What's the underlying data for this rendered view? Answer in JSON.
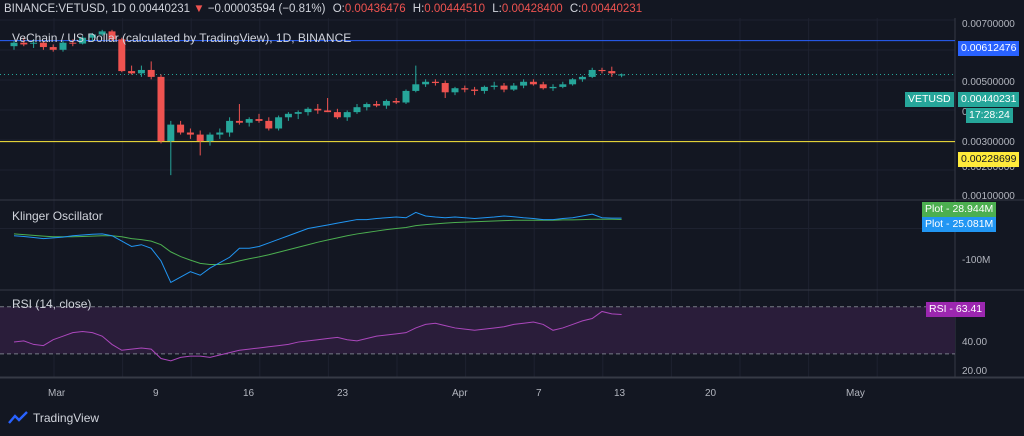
{
  "header": {
    "symbol": "BINANCE:VETUSD, 1D",
    "last": "0.00440231",
    "arrow": "▼",
    "change": "−0.00003594 (−0.81%)",
    "o_label": "O:",
    "o_value": "0.00436476",
    "h_label": "H:",
    "h_value": "0.00444510",
    "l_label": "L:",
    "l_value": "0.00428400",
    "c_label": "C:",
    "c_value": "0.00440231"
  },
  "main_pane": {
    "title": "VeChain / US Dollar (calculated by TradingView), 1D, BINANCE",
    "price_ticks": [
      "0.00700000",
      "0.00500000",
      "0.00300000",
      "0.00200000",
      "0.00100000"
    ],
    "partial_tick": "0",
    "blue_line_label": "0.00612476",
    "yellow_line_label": "0.00228699",
    "vetusd_tag": "VETUSD",
    "last_price_tag": "0.00440231",
    "countdown": "17:28:24"
  },
  "klinger_pane": {
    "title": "Klinger Oscillator",
    "plot1_label": "Plot",
    "plot1_value": "28.944M",
    "plot2_label": "Plot",
    "plot2_value": "25.081M",
    "tick_minus100": "-100M"
  },
  "rsi_pane": {
    "title": "RSI (14, close)",
    "rsi_label": "RSI",
    "rsi_value": "63.41",
    "ticks": [
      "40.00",
      "20.00"
    ]
  },
  "time_axis": {
    "labels": [
      "Mar",
      "9",
      "16",
      "23",
      "Apr",
      "7",
      "13",
      "20",
      "May"
    ]
  },
  "brand": {
    "name": "TradingView"
  },
  "colors": {
    "background": "#131722",
    "up": "#26a69a",
    "down": "#ef5350",
    "kvo_line": "#2196f3",
    "kvo_signal": "#4caf50",
    "rsi_line": "#ab47bc",
    "rsi_band": "#2a1d3a",
    "blue_line": "#2962ff",
    "yellow_line": "#ffeb3b"
  },
  "chart_data": {
    "type": "candlestick",
    "price_scale": "log",
    "price_ticks": [
      0.007,
      0.005,
      0.003,
      0.002,
      0.001
    ],
    "horizontal_lines": [
      0.00612476,
      0.00228699
    ],
    "x": [
      "Feb 26",
      "Feb 27",
      "Feb 28",
      "Feb 29",
      "Mar 1",
      "Mar 2",
      "Mar 3",
      "Mar 4",
      "Mar 5",
      "Mar 6",
      "Mar 7",
      "Mar 8",
      "Mar 9",
      "Mar 10",
      "Mar 11",
      "Mar 12",
      "Mar 13",
      "Mar 14",
      "Mar 15",
      "Mar 16",
      "Mar 17",
      "Mar 18",
      "Mar 19",
      "Mar 20",
      "Mar 21",
      "Mar 22",
      "Mar 23",
      "Mar 24",
      "Mar 25",
      "Mar 26",
      "Mar 27",
      "Mar 28",
      "Mar 29",
      "Mar 30",
      "Mar 31",
      "Apr 1",
      "Apr 2",
      "Apr 3",
      "Apr 4",
      "Apr 5",
      "Apr 6",
      "Apr 7",
      "Apr 8",
      "Apr 9",
      "Apr 10",
      "Apr 11",
      "Apr 12",
      "Apr 13",
      "Apr 14",
      "Apr 15",
      "Apr 16",
      "Apr 17",
      "Apr 18",
      "Apr 19",
      "Apr 20",
      "Apr 21",
      "Apr 22",
      "Apr 23",
      "Apr 24",
      "Apr 25",
      "Apr 26",
      "Apr 27",
      "Apr 28"
    ],
    "ohlc": [
      [
        0.0058,
        0.0061,
        0.0056,
        0.006
      ],
      [
        0.006,
        0.0063,
        0.0058,
        0.0059
      ],
      [
        0.00595,
        0.0062,
        0.0057,
        0.006
      ],
      [
        0.006,
        0.0061,
        0.0056,
        0.00575
      ],
      [
        0.00575,
        0.0059,
        0.0055,
        0.0056
      ],
      [
        0.0056,
        0.0061,
        0.0055,
        0.006
      ],
      [
        0.006,
        0.0062,
        0.0058,
        0.00595
      ],
      [
        0.00595,
        0.0064,
        0.0059,
        0.0063
      ],
      [
        0.0063,
        0.0066,
        0.0061,
        0.0065
      ],
      [
        0.0065,
        0.0068,
        0.0064,
        0.0067
      ],
      [
        0.0067,
        0.0068,
        0.0061,
        0.0062
      ],
      [
        0.0062,
        0.0063,
        0.0045,
        0.00455
      ],
      [
        0.00455,
        0.0048,
        0.0044,
        0.00445
      ],
      [
        0.00445,
        0.0048,
        0.0043,
        0.0046
      ],
      [
        0.0046,
        0.005,
        0.0042,
        0.0043
      ],
      [
        0.0043,
        0.0044,
        0.00225,
        0.0023
      ],
      [
        0.0023,
        0.0028,
        0.00165,
        0.0027
      ],
      [
        0.0027,
        0.0028,
        0.00245,
        0.0025
      ],
      [
        0.0025,
        0.0026,
        0.00235,
        0.00245
      ],
      [
        0.00245,
        0.00255,
        0.002,
        0.0023
      ],
      [
        0.0023,
        0.0025,
        0.0022,
        0.00245
      ],
      [
        0.00245,
        0.0026,
        0.00235,
        0.0025
      ],
      [
        0.0025,
        0.0029,
        0.0024,
        0.0028
      ],
      [
        0.0028,
        0.0033,
        0.0027,
        0.00275
      ],
      [
        0.00275,
        0.0029,
        0.00265,
        0.00285
      ],
      [
        0.00285,
        0.003,
        0.00275,
        0.0028
      ],
      [
        0.0028,
        0.0029,
        0.00255,
        0.0026
      ],
      [
        0.0026,
        0.00295,
        0.00255,
        0.0029
      ],
      [
        0.0029,
        0.00305,
        0.0028,
        0.003
      ],
      [
        0.003,
        0.0031,
        0.00285,
        0.00305
      ],
      [
        0.00305,
        0.0032,
        0.00295,
        0.00315
      ],
      [
        0.00315,
        0.0033,
        0.003,
        0.0031
      ],
      [
        0.0031,
        0.0035,
        0.00305,
        0.00305
      ],
      [
        0.00305,
        0.00315,
        0.00285,
        0.0029
      ],
      [
        0.0029,
        0.0031,
        0.0028,
        0.00305
      ],
      [
        0.00305,
        0.0033,
        0.003,
        0.0032
      ],
      [
        0.0032,
        0.00335,
        0.0031,
        0.0033
      ],
      [
        0.0033,
        0.0034,
        0.0032,
        0.00325
      ],
      [
        0.00325,
        0.00345,
        0.00315,
        0.0034
      ],
      [
        0.0034,
        0.0035,
        0.0033,
        0.00335
      ],
      [
        0.00335,
        0.0038,
        0.0033,
        0.00375
      ],
      [
        0.00375,
        0.0048,
        0.0037,
        0.004
      ],
      [
        0.004,
        0.0042,
        0.0039,
        0.0041
      ],
      [
        0.0041,
        0.0042,
        0.00395,
        0.00405
      ],
      [
        0.00405,
        0.00415,
        0.0035,
        0.0037
      ],
      [
        0.0037,
        0.0039,
        0.0036,
        0.00385
      ],
      [
        0.00385,
        0.00395,
        0.0037,
        0.0038
      ],
      [
        0.0038,
        0.0039,
        0.0036,
        0.00375
      ],
      [
        0.00375,
        0.00395,
        0.00365,
        0.0039
      ],
      [
        0.0039,
        0.0041,
        0.0038,
        0.00395
      ],
      [
        0.00395,
        0.00405,
        0.0037,
        0.0038
      ],
      [
        0.0038,
        0.00405,
        0.00375,
        0.00395
      ],
      [
        0.00395,
        0.0042,
        0.00385,
        0.0041
      ],
      [
        0.0041,
        0.0042,
        0.00395,
        0.004
      ],
      [
        0.004,
        0.0041,
        0.0038,
        0.00385
      ],
      [
        0.00385,
        0.004,
        0.00375,
        0.0039
      ],
      [
        0.0039,
        0.0041,
        0.00385,
        0.004
      ],
      [
        0.004,
        0.00425,
        0.00395,
        0.0042
      ],
      [
        0.0042,
        0.00435,
        0.0041,
        0.0043
      ],
      [
        0.0043,
        0.0047,
        0.00425,
        0.0046
      ],
      [
        0.0046,
        0.0047,
        0.00445,
        0.00455
      ],
      [
        0.00455,
        0.00475,
        0.0043,
        0.00445
      ],
      [
        0.00436476,
        0.0044451,
        0.004284,
        0.00440231
      ]
    ],
    "klinger": {
      "kvo": [
        -20,
        -22,
        -25,
        -28,
        -26,
        -24,
        -20,
        -18,
        -16,
        -15,
        -20,
        -35,
        -50,
        -45,
        -55,
        -90,
        -150,
        -135,
        -120,
        -130,
        -110,
        -95,
        -80,
        -55,
        -55,
        -50,
        -40,
        -30,
        -20,
        -10,
        0,
        5,
        10,
        15,
        20,
        25,
        25,
        28,
        30,
        32,
        30,
        45,
        35,
        32,
        30,
        32,
        30,
        28,
        30,
        32,
        35,
        33,
        30,
        28,
        25,
        25,
        28,
        30,
        35,
        40,
        30,
        29,
        28.944
      ],
      "signal": [
        -15,
        -17,
        -19,
        -21,
        -23,
        -23,
        -23,
        -22,
        -21,
        -20,
        -20,
        -23,
        -28,
        -31,
        -35,
        -45,
        -65,
        -78,
        -88,
        -97,
        -100,
        -100,
        -97,
        -90,
        -84,
        -79,
        -73,
        -66,
        -59,
        -52,
        -45,
        -38,
        -32,
        -26,
        -20,
        -15,
        -11,
        -7,
        -3,
        0,
        3,
        8,
        11,
        13,
        15,
        17,
        18,
        19,
        20,
        21,
        22,
        23,
        23,
        23,
        23,
        23,
        24,
        24,
        25,
        26,
        26,
        26,
        25.081
      ]
    },
    "rsi": {
      "values": [
        40,
        41,
        38,
        37,
        42,
        45,
        48,
        49,
        48,
        45,
        38,
        33,
        34,
        35,
        34,
        26,
        24,
        27,
        28,
        28,
        27,
        29,
        31,
        33,
        34,
        35,
        36,
        37,
        38,
        40,
        41,
        42,
        43,
        44,
        42,
        41,
        43,
        45,
        46,
        47,
        48,
        52,
        55,
        56,
        54,
        52,
        51,
        50,
        51,
        52,
        53,
        55,
        56,
        57,
        55,
        50,
        52,
        55,
        58,
        60,
        66,
        64,
        63.41
      ],
      "bands": [
        70,
        30
      ],
      "ticks": [
        40,
        20
      ]
    }
  }
}
